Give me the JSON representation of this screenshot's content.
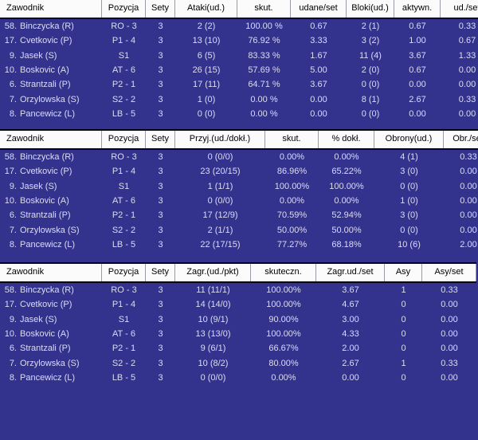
{
  "colors": {
    "row_background": "#33338E",
    "header_background": "#FBFBFB",
    "header_text": "#000000",
    "row_text": "#DCDCF4",
    "rule_line": "#05051a",
    "header_separator": "#9a9aa8"
  },
  "tables": [
    {
      "id": "attacks-blocks",
      "columns": [
        "Zawodnik",
        "Pozycja",
        "Sety",
        "Ataki(ud.)",
        "skut.",
        "udane/set",
        "Bloki(ud.)",
        "aktywn.",
        "ud./set"
      ],
      "rows": [
        [
          "58. Binczycka (R)",
          "RO - 3",
          "3",
          "2 (2)",
          "100.00 %",
          "0.67",
          "2 (1)",
          "0.67",
          "0.33"
        ],
        [
          "17. Cvetkovic (P)",
          "P1 - 4",
          "3",
          "13 (10)",
          "76.92 %",
          "3.33",
          "3 (2)",
          "1.00",
          "0.67"
        ],
        [
          "9. Jasek (S)",
          "S1",
          "3",
          "6 (5)",
          "83.33 %",
          "1.67",
          "11 (4)",
          "3.67",
          "1.33"
        ],
        [
          "10. Boskovic (A)",
          "AT - 6",
          "3",
          "26 (15)",
          "57.69 %",
          "5.00",
          "2 (0)",
          "0.67",
          "0.00"
        ],
        [
          "6. Strantzali (P)",
          "P2 - 1",
          "3",
          "17 (11)",
          "64.71 %",
          "3.67",
          "0 (0)",
          "0.00",
          "0.00"
        ],
        [
          "7. Orzylowska (S)",
          "S2 - 2",
          "3",
          "1 (0)",
          "0.00 %",
          "0.00",
          "8 (1)",
          "2.67",
          "0.33"
        ],
        [
          "8. Pancewicz (L)",
          "LB - 5",
          "3",
          "0 (0)",
          "0.00 %",
          "0.00",
          "0 (0)",
          "0.00",
          "0.00"
        ]
      ]
    },
    {
      "id": "reception-defense",
      "columns": [
        "Zawodnik",
        "Pozycja",
        "Sety",
        "Przyj.(ud./dokł.)",
        "skut.",
        "% dokł.",
        "Obrony(ud.)",
        "Obr./set"
      ],
      "rows": [
        [
          "58. Binczycka (R)",
          "RO - 3",
          "3",
          "0 (0/0)",
          "0.00%",
          "0.00%",
          "4 (1)",
          "0.33"
        ],
        [
          "17. Cvetkovic (P)",
          "P1 - 4",
          "3",
          "23 (20/15)",
          "86.96%",
          "65.22%",
          "3 (0)",
          "0.00"
        ],
        [
          "9. Jasek (S)",
          "S1",
          "3",
          "1 (1/1)",
          "100.00%",
          "100.00%",
          "0 (0)",
          "0.00"
        ],
        [
          "10. Boskovic (A)",
          "AT - 6",
          "3",
          "0 (0/0)",
          "0.00%",
          "0.00%",
          "1 (0)",
          "0.00"
        ],
        [
          "6. Strantzali (P)",
          "P2 - 1",
          "3",
          "17 (12/9)",
          "70.59%",
          "52.94%",
          "3 (0)",
          "0.00"
        ],
        [
          "7. Orzylowska (S)",
          "S2 - 2",
          "3",
          "2 (1/1)",
          "50.00%",
          "50.00%",
          "0 (0)",
          "0.00"
        ],
        [
          "8. Pancewicz (L)",
          "LB - 5",
          "3",
          "22 (17/15)",
          "77.27%",
          "68.18%",
          "10 (6)",
          "2.00"
        ]
      ]
    },
    {
      "id": "serve-aces",
      "columns": [
        "Zawodnik",
        "Pozycja",
        "Sety",
        "Zagr.(ud./pkt)",
        "skuteczn.",
        "Zagr.ud./set",
        "Asy",
        "Asy/set"
      ],
      "rows": [
        [
          "58. Binczycka (R)",
          "RO - 3",
          "3",
          "11 (11/1)",
          "100.00%",
          "3.67",
          "1",
          "0.33"
        ],
        [
          "17. Cvetkovic (P)",
          "P1 - 4",
          "3",
          "14 (14/0)",
          "100.00%",
          "4.67",
          "0",
          "0.00"
        ],
        [
          "9. Jasek (S)",
          "S1",
          "3",
          "10 (9/1)",
          "90.00%",
          "3.00",
          "0",
          "0.00"
        ],
        [
          "10. Boskovic (A)",
          "AT - 6",
          "3",
          "13 (13/0)",
          "100.00%",
          "4.33",
          "0",
          "0.00"
        ],
        [
          "6. Strantzali (P)",
          "P2 - 1",
          "3",
          "9 (6/1)",
          "66.67%",
          "2.00",
          "0",
          "0.00"
        ],
        [
          "7. Orzylowska (S)",
          "S2 - 2",
          "3",
          "10 (8/2)",
          "80.00%",
          "2.67",
          "1",
          "0.33"
        ],
        [
          "8. Pancewicz (L)",
          "LB - 5",
          "3",
          "0 (0/0)",
          "0.00%",
          "0.00",
          "0",
          "0.00"
        ]
      ]
    }
  ]
}
